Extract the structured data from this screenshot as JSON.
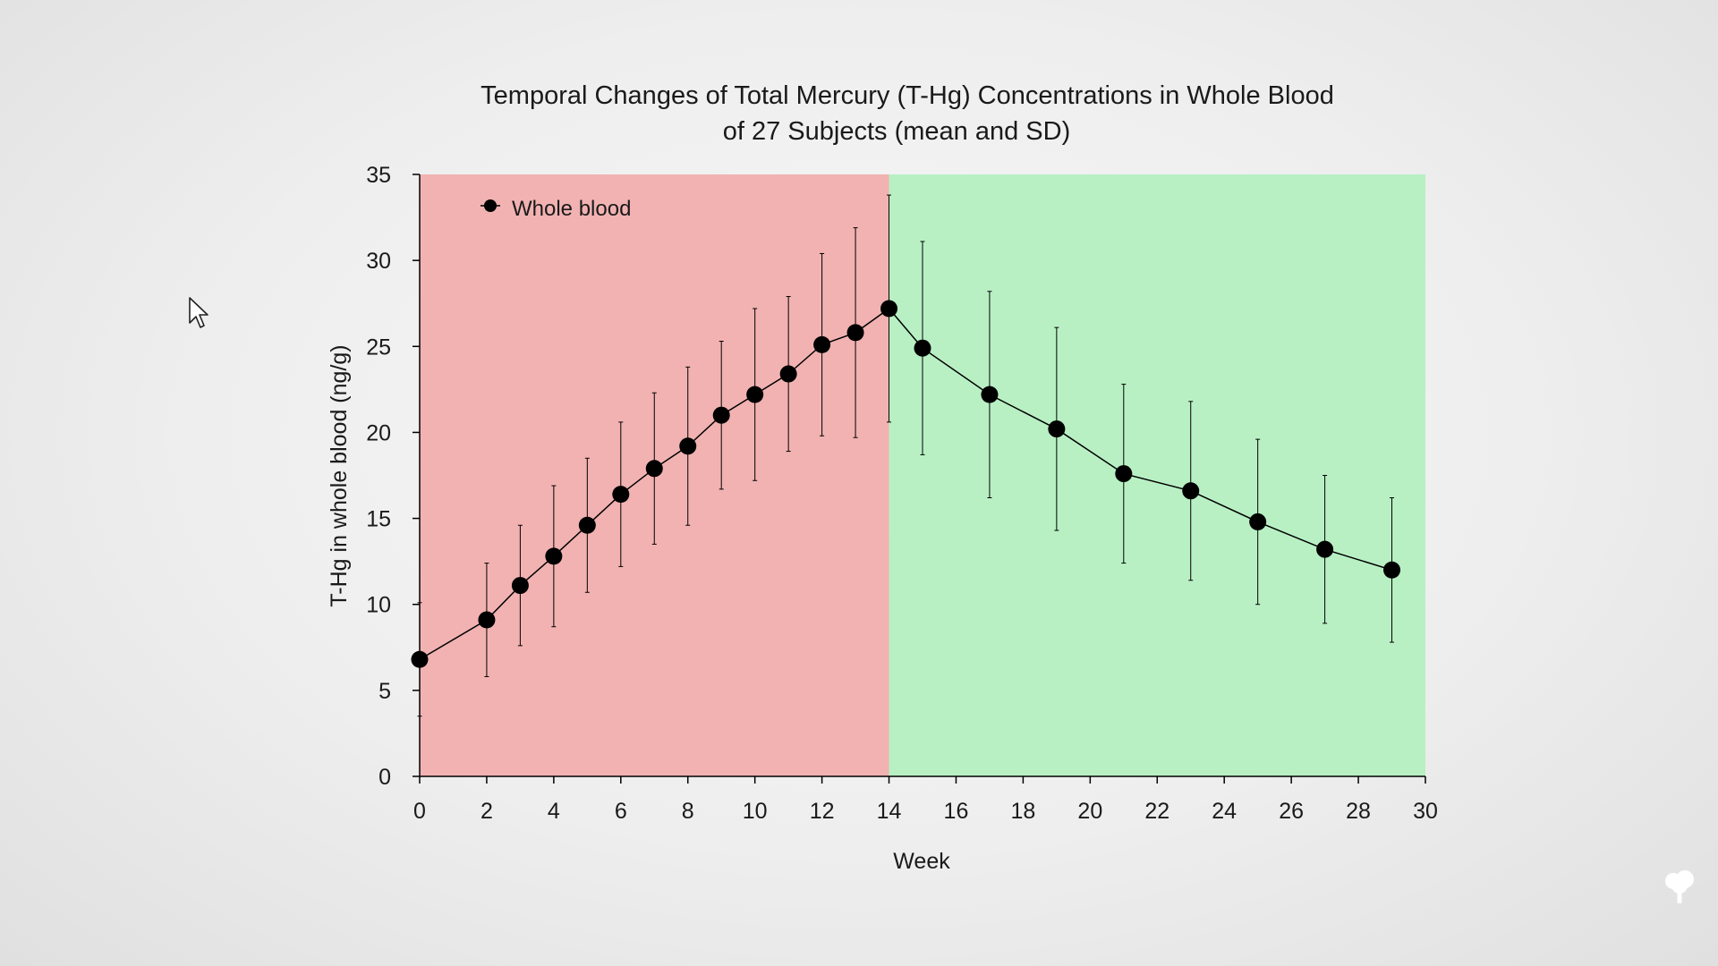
{
  "chart_data": {
    "type": "line",
    "title_lines": [
      "Temporal Changes of Total Mercury (T-Hg) Concentrations in Whole Blood",
      "of 27 Subjects (mean and SD)"
    ],
    "xlabel": "Week",
    "ylabel": "T-Hg in whole blood (ng/g)",
    "xlim": [
      0,
      30
    ],
    "ylim": [
      0,
      35
    ],
    "x_ticks": [
      0,
      2,
      4,
      6,
      8,
      10,
      12,
      14,
      16,
      18,
      20,
      22,
      24,
      26,
      28,
      30
    ],
    "y_ticks": [
      0,
      5,
      10,
      15,
      20,
      25,
      30,
      35
    ],
    "legend_position": "top-left",
    "grid": false,
    "shaded_regions": [
      {
        "from": 0,
        "to": 14,
        "color": "#f2b2b2"
      },
      {
        "from": 14,
        "to": 30,
        "color": "#b8f0c4"
      }
    ],
    "series": [
      {
        "name": "Whole blood",
        "color": "#000000",
        "x": [
          0,
          2,
          3,
          4,
          5,
          6,
          7,
          8,
          9,
          10,
          11,
          12,
          13,
          14,
          15,
          17,
          19,
          21,
          23,
          25,
          27,
          29
        ],
        "y": [
          6.8,
          9.1,
          11.1,
          12.8,
          14.6,
          16.4,
          17.9,
          19.2,
          21.0,
          22.2,
          23.4,
          25.1,
          25.8,
          27.2,
          24.9,
          22.2,
          20.2,
          17.6,
          16.6,
          14.8,
          13.2,
          12.0
        ],
        "y_err": [
          3.3,
          3.3,
          3.5,
          4.1,
          3.9,
          4.2,
          4.4,
          4.6,
          4.3,
          5.0,
          4.5,
          5.3,
          6.1,
          6.6,
          6.2,
          6.0,
          5.9,
          5.2,
          5.2,
          4.8,
          4.3,
          4.2
        ]
      }
    ]
  },
  "cursor_icon": "pointer-arrow-icon",
  "logo_icon": "tree-logo-icon"
}
